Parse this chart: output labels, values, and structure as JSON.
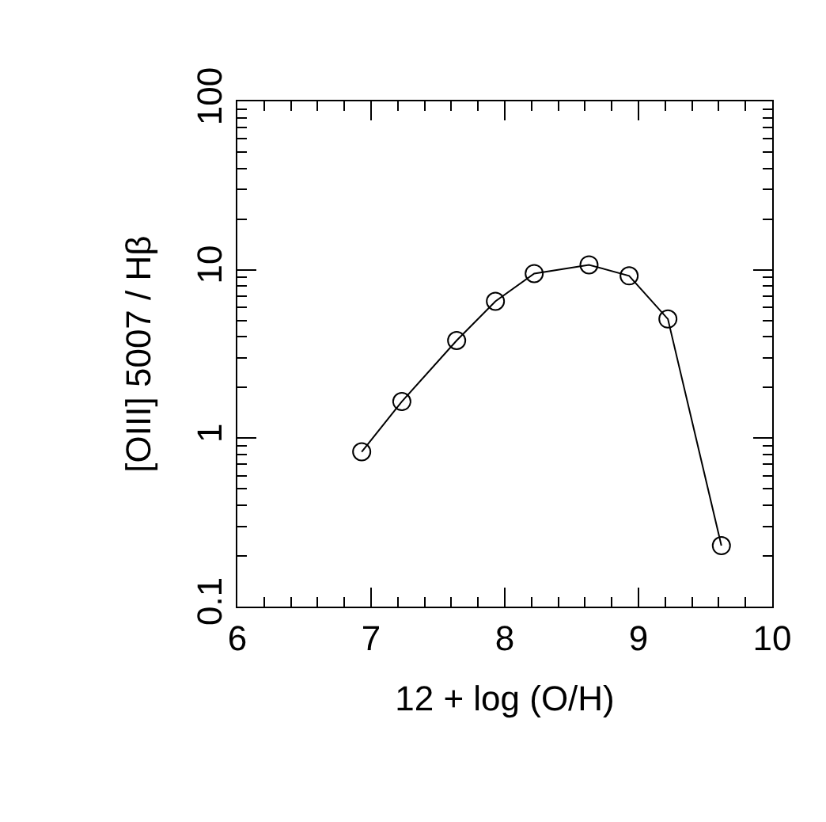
{
  "chart_data": {
    "type": "line",
    "xlabel": "12 + log (O/H)",
    "ylabel": "[OIII] 5007 / Hβ",
    "log": "y",
    "marker": "circle",
    "line_style": "solid",
    "legend": false,
    "xlim": [
      6,
      10
    ],
    "xticks": [
      6,
      7,
      8,
      9,
      10
    ],
    "ylim": [
      0.1,
      100
    ],
    "yticks": [
      0.1,
      1,
      10,
      100
    ],
    "series": [
      {
        "color": "#000000",
        "x": [
          6.93,
          7.23,
          7.64,
          7.93,
          8.22,
          8.63,
          8.93,
          9.22,
          9.62
        ],
        "values": [
          0.83,
          1.65,
          3.8,
          6.5,
          9.5,
          10.7,
          9.2,
          5.1,
          0.23
        ]
      }
    ]
  }
}
